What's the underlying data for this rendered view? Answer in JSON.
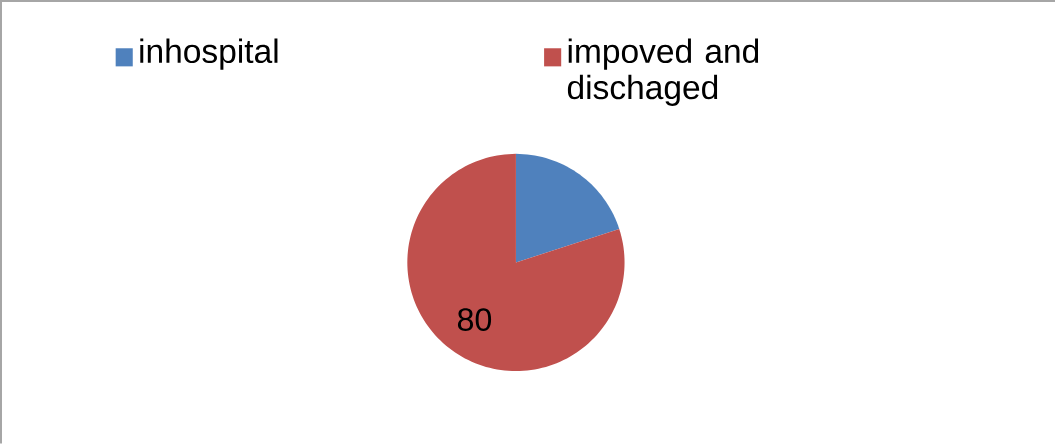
{
  "chart_data": {
    "type": "pie",
    "categories": [
      "inhospital",
      "impoved and dischaged"
    ],
    "values": [
      20,
      80
    ],
    "colors": [
      "#4f81bd",
      "#c0504d"
    ],
    "value_labels": [
      null,
      "80"
    ],
    "legend": "top"
  }
}
